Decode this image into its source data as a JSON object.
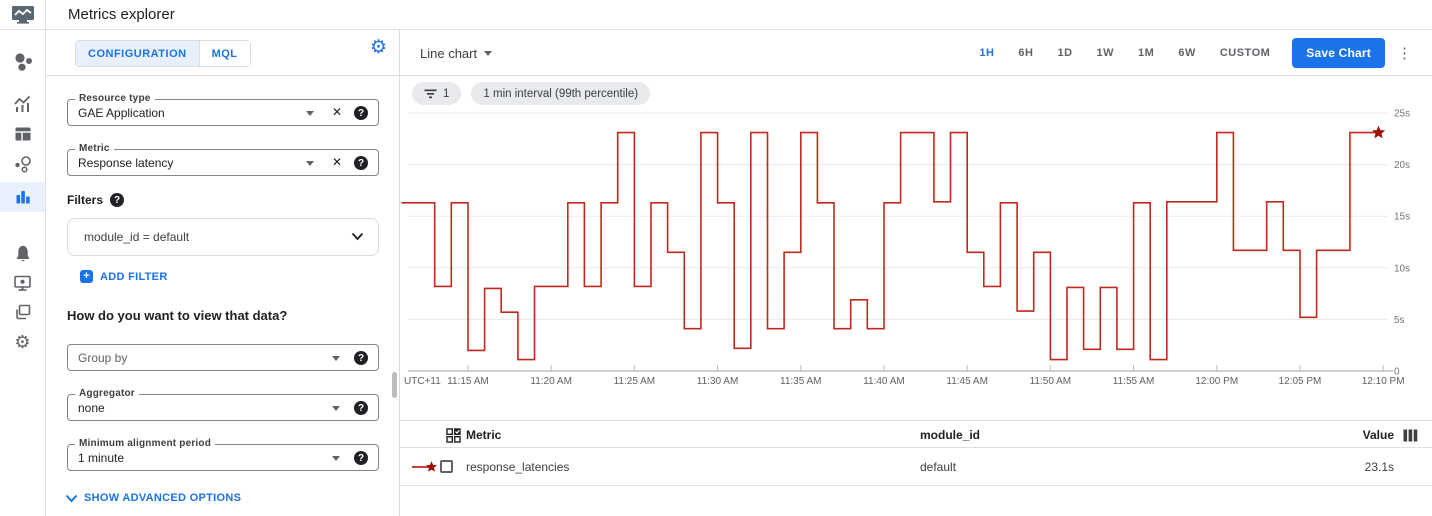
{
  "app": {
    "title": "Metrics explorer",
    "logo_icon": "monitoring-chart-icon"
  },
  "nav": {
    "icons": [
      "overview-icon",
      "metrics-icon",
      "dashboards-icon",
      "services-icon",
      "metrics-explorer-icon",
      "alerting-bell-icon",
      "uptime-monitor-icon",
      "groups-icon",
      "settings-gear-icon"
    ],
    "active": "metrics-explorer"
  },
  "config": {
    "tabs": [
      "CONFIGURATION",
      "MQL"
    ],
    "active_tab": "CONFIGURATION",
    "resource_type": {
      "label": "Resource type",
      "value": "GAE Application"
    },
    "metric": {
      "label": "Metric",
      "value": "Response latency"
    },
    "filters_heading": "Filters",
    "filter_chip": {
      "value": "module_id = default"
    },
    "add_filter_label": "ADD FILTER",
    "view_heading": "How do you want to view that data?",
    "group_by": {
      "placeholder": "Group by"
    },
    "aggregator": {
      "label": "Aggregator",
      "value": "none"
    },
    "min_alignment_period": {
      "label": "Minimum alignment period",
      "value": "1 minute"
    },
    "advanced_label": "SHOW ADVANCED OPTIONS"
  },
  "toolbar": {
    "chart_type": "Line chart",
    "ranges": [
      "1H",
      "6H",
      "1D",
      "1W",
      "1M",
      "6W",
      "CUSTOM"
    ],
    "active_range": "1H",
    "save_label": "Save Chart"
  },
  "chips": {
    "filter_count": "1",
    "interval_label": "1 min interval (99th percentile)"
  },
  "chart_data": {
    "type": "line",
    "step": true,
    "unit": "s",
    "ylim": [
      0,
      25
    ],
    "y_ticks": [
      "25s",
      "20s",
      "15s",
      "10s",
      "5s",
      "0"
    ],
    "timezone": "UTC+11",
    "x_ticks": [
      "11:15 AM",
      "11:20 AM",
      "11:25 AM",
      "11:30 AM",
      "11:35 AM",
      "11:40 AM",
      "11:45 AM",
      "11:50 AM",
      "11:55 AM",
      "12:00 PM",
      "12:05 PM",
      "12:10 PM"
    ],
    "x": [
      "11:11 AM",
      "11:12 AM",
      "11:13 AM",
      "11:14 AM",
      "11:15 AM",
      "11:16 AM",
      "11:17 AM",
      "11:18 AM",
      "11:19 AM",
      "11:20 AM",
      "11:21 AM",
      "11:22 AM",
      "11:23 AM",
      "11:24 AM",
      "11:25 AM",
      "11:26 AM",
      "11:27 AM",
      "11:28 AM",
      "11:29 AM",
      "11:30 AM",
      "11:31 AM",
      "11:32 AM",
      "11:33 AM",
      "11:34 AM",
      "11:35 AM",
      "11:36 AM",
      "11:37 AM",
      "11:38 AM",
      "11:39 AM",
      "11:40 AM",
      "11:41 AM",
      "11:42 AM",
      "11:43 AM",
      "11:44 AM",
      "11:45 AM",
      "11:46 AM",
      "11:47 AM",
      "11:48 AM",
      "11:49 AM",
      "11:50 AM",
      "11:51 AM",
      "11:52 AM",
      "11:53 AM",
      "11:54 AM",
      "11:55 AM",
      "11:56 AM",
      "11:57 AM",
      "11:58 AM",
      "11:59 AM",
      "12:00 PM",
      "12:01 PM",
      "12:02 PM",
      "12:03 PM",
      "12:04 PM",
      "12:05 PM",
      "12:06 PM",
      "12:07 PM",
      "12:08 PM",
      "12:09 PM"
    ],
    "series": [
      {
        "name": "response_latencies",
        "module_id": "default",
        "values": [
          16.3,
          16.3,
          8.2,
          16.3,
          2.0,
          8.0,
          5.7,
          1.1,
          8.2,
          8.2,
          16.3,
          8.2,
          16.3,
          23.1,
          8.2,
          16.3,
          11.5,
          4.1,
          23.1,
          16.3,
          2.2,
          23.1,
          4.1,
          11.5,
          23.1,
          16.3,
          4.1,
          6.9,
          4.1,
          16.3,
          23.1,
          23.1,
          16.4,
          23.1,
          11.5,
          8.2,
          16.3,
          5.8,
          11.5,
          1.1,
          8.1,
          2.1,
          8.1,
          2.1,
          16.3,
          1.1,
          16.4,
          16.4,
          16.4,
          23.1,
          11.7,
          11.7,
          16.4,
          11.7,
          5.2,
          11.7,
          11.7,
          23.1,
          23.1
        ]
      }
    ],
    "last_point_marker": "star",
    "legend_position": "table-below"
  },
  "table": {
    "metric_header": "Metric",
    "module_header": "module_id",
    "value_header": "Value",
    "rows": [
      {
        "metric": "response_latencies",
        "module_id": "default",
        "value": "23.1s"
      }
    ]
  },
  "colors": {
    "accent": "#1a73e8",
    "line_red": "#c0291d",
    "star_red": "#9c1006",
    "active_tab_bg": "#e8f0fe"
  }
}
